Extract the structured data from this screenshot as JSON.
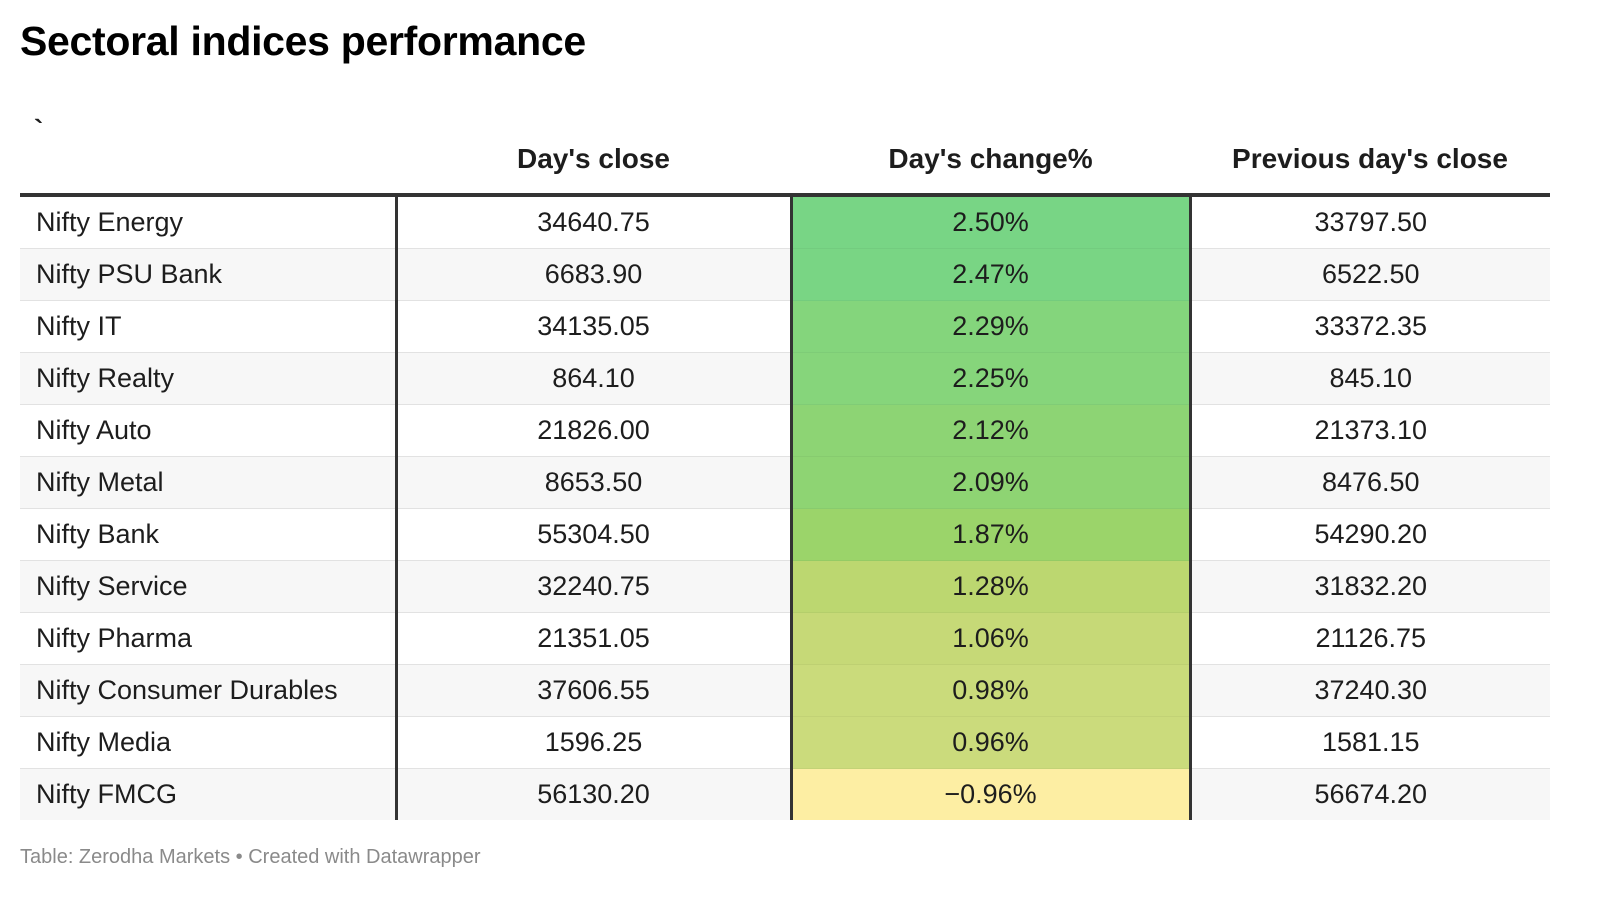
{
  "title": "Sectoral indices performance",
  "source": "Table: Zerodha Markets • Created with Datawrapper",
  "chart_data": {
    "type": "table",
    "columns": [
      "`",
      "Day's close",
      "Day's change%",
      "Previous day's close"
    ],
    "rows": [
      {
        "name": "Nifty Energy",
        "close": "34640.75",
        "change": "2.50%",
        "prev": "33797.50",
        "change_value": 2.5,
        "color": "#78d585"
      },
      {
        "name": "Nifty PSU Bank",
        "close": "6683.90",
        "change": "2.47%",
        "prev": "6522.50",
        "change_value": 2.47,
        "color": "#79d584"
      },
      {
        "name": "Nifty IT",
        "close": "34135.05",
        "change": "2.29%",
        "prev": "33372.35",
        "change_value": 2.29,
        "color": "#84d57c"
      },
      {
        "name": "Nifty Realty",
        "close": "864.10",
        "change": "2.25%",
        "prev": "845.10",
        "change_value": 2.25,
        "color": "#86d57b"
      },
      {
        "name": "Nifty Auto",
        "close": "21826.00",
        "change": "2.12%",
        "prev": "21373.10",
        "change_value": 2.12,
        "color": "#8dd474"
      },
      {
        "name": "Nifty Metal",
        "close": "8653.50",
        "change": "2.09%",
        "prev": "8476.50",
        "change_value": 2.09,
        "color": "#8ed473"
      },
      {
        "name": "Nifty Bank",
        "close": "55304.50",
        "change": "1.87%",
        "prev": "54290.20",
        "change_value": 1.87,
        "color": "#9bd46a"
      },
      {
        "name": "Nifty Service",
        "close": "32240.75",
        "change": "1.28%",
        "prev": "31832.20",
        "change_value": 1.28,
        "color": "#bcd770"
      },
      {
        "name": "Nifty Pharma",
        "close": "21351.05",
        "change": "1.06%",
        "prev": "21126.75",
        "change_value": 1.06,
        "color": "#c6d977"
      },
      {
        "name": "Nifty Consumer Durables",
        "close": "37606.55",
        "change": "0.98%",
        "prev": "37240.30",
        "change_value": 0.98,
        "color": "#cadb7b"
      },
      {
        "name": "Nifty Media",
        "close": "1596.25",
        "change": "0.96%",
        "prev": "1581.15",
        "change_value": 0.96,
        "color": "#cbdb7c"
      },
      {
        "name": "Nifty FMCG",
        "close": "56130.20",
        "change": "−0.96%",
        "prev": "56674.20",
        "change_value": -0.96,
        "color": "#fdeea3"
      }
    ]
  }
}
